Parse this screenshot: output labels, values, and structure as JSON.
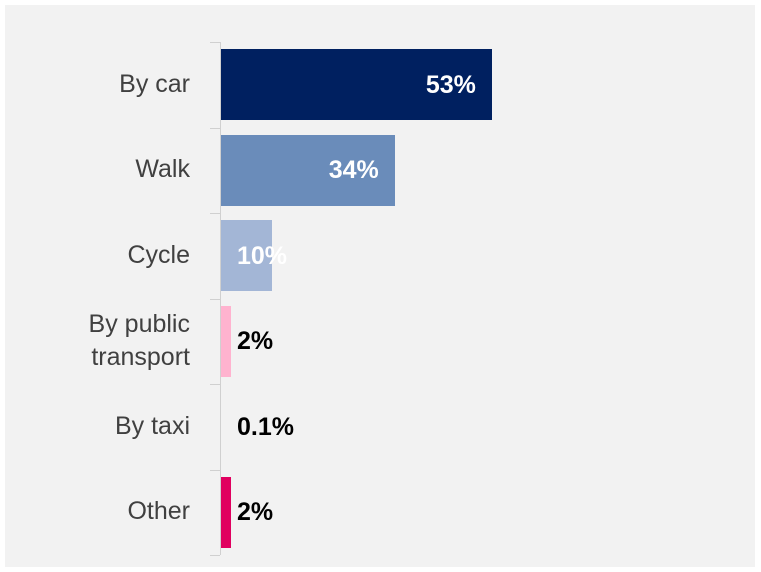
{
  "chart_data": {
    "type": "bar",
    "orientation": "horizontal",
    "categories": [
      "By car",
      "Walk",
      "Cycle",
      "By public transport",
      "By taxi",
      "Other"
    ],
    "values": [
      53,
      34,
      10,
      2,
      0.1,
      2
    ],
    "value_labels": [
      "53%",
      "34%",
      "10%",
      "2%",
      "0.1%",
      "2%"
    ],
    "colors": [
      "#002060",
      "#6a8cba",
      "#a3b6d6",
      "#ffb3cf",
      "#f2f2f2",
      "#e0005f"
    ],
    "value_label_colors": [
      "#ffffff",
      "#ffffff",
      "#ffffff",
      "#000000",
      "#000000",
      "#000000"
    ],
    "xlim": [
      0,
      100
    ]
  }
}
